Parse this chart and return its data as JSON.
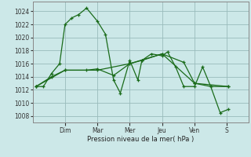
{
  "background_color": "#cce8e8",
  "grid_color": "#99bbbb",
  "line_color": "#1a6b1a",
  "marker_color": "#1a6b1a",
  "xlabel": "Pression niveau de la mer( hPa )",
  "ylim": [
    1007,
    1025.5
  ],
  "yticks": [
    1008,
    1010,
    1012,
    1014,
    1016,
    1018,
    1020,
    1022,
    1024
  ],
  "day_labels": [
    "Dim",
    "Mar",
    "Mer",
    "Jeu",
    "Ven",
    "S"
  ],
  "day_positions": [
    48,
    96,
    144,
    192,
    240,
    288
  ],
  "xlim": [
    0,
    320
  ],
  "series1_x": [
    5,
    16,
    28,
    40,
    48,
    58,
    68,
    80,
    96,
    108,
    120,
    130,
    144,
    156,
    162,
    176,
    192,
    200,
    212,
    224,
    240,
    252,
    264,
    278,
    290
  ],
  "series1_y": [
    1012.5,
    1012.5,
    1014.5,
    1016.0,
    1022.0,
    1023.0,
    1023.5,
    1024.5,
    1022.5,
    1020.5,
    1013.5,
    1011.5,
    1016.5,
    1013.5,
    1016.5,
    1017.5,
    1017.2,
    1017.8,
    1015.5,
    1012.5,
    1012.5,
    1015.5,
    1012.5,
    1008.5,
    1009.0
  ],
  "series2_x": [
    5,
    28,
    48,
    80,
    96,
    120,
    144,
    162,
    192,
    224,
    240,
    264,
    290
  ],
  "series2_y": [
    1012.5,
    1014.0,
    1015.0,
    1015.0,
    1015.2,
    1014.2,
    1016.0,
    1016.5,
    1017.5,
    1016.2,
    1013.0,
    1012.5,
    1012.5
  ],
  "series3_x": [
    5,
    48,
    96,
    144,
    192,
    240,
    290
  ],
  "series3_y": [
    1012.5,
    1015.0,
    1015.0,
    1016.0,
    1017.5,
    1013.0,
    1012.5
  ]
}
